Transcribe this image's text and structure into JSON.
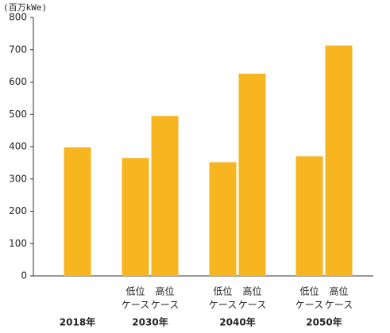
{
  "chart_data": {
    "type": "bar",
    "title": "(百万kWe)",
    "categories": [
      null,
      [
        "低位",
        "ケース"
      ],
      [
        "高位",
        "ケース"
      ],
      [
        "低位",
        "ケース"
      ],
      [
        "高位",
        "ケース"
      ],
      [
        "低位",
        "ケース"
      ],
      [
        "高位",
        "ケース"
      ]
    ],
    "groups": [
      "2018年",
      "2030年",
      "2040年",
      "2050年"
    ],
    "values": [
      398,
      365,
      495,
      352,
      626,
      370,
      713
    ],
    "color": "#f7b520",
    "ylim": [
      0,
      800
    ],
    "yticks": [
      0,
      100,
      200,
      300,
      400,
      500,
      600,
      700,
      800
    ],
    "grid": false
  }
}
